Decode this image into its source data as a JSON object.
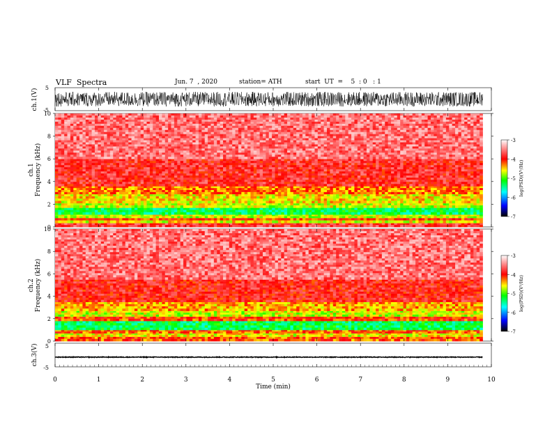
{
  "header": {
    "title": "VLF  Spectra",
    "date": "Jun. 7  , 2020",
    "station": "station= ATH",
    "start_ut": "start  UT  =    5  : 0   : 1"
  },
  "chart_data": [
    {
      "type": "line",
      "title": "",
      "ylabel": "ch.1(V)",
      "ylim": [
        -5,
        5
      ],
      "y_ticks": [
        "5",
        "-5"
      ],
      "description_of_data": "broadband waveform, roughly +/-3 V, continuous over 0-9.8 min",
      "x_extent_min": [
        0,
        9.8
      ]
    },
    {
      "type": "heatmap",
      "ylabel": "Frequency  (kHz)",
      "channel_label": "ch.1",
      "ylim": [
        0,
        10
      ],
      "y_ticks": [
        "0",
        "2",
        "4",
        "6",
        "8",
        "10"
      ],
      "x_extent_min": [
        0,
        9.8
      ],
      "frequency_bands_log_psd": [
        {
          "f_from_khz": 0.0,
          "f_to_khz": 0.35,
          "level": -3.8
        },
        {
          "f_from_khz": 0.35,
          "f_to_khz": 0.6,
          "level": -4.6
        },
        {
          "f_from_khz": 0.6,
          "f_to_khz": 0.8,
          "level": -4.1
        },
        {
          "f_from_khz": 0.8,
          "f_to_khz": 1.1,
          "level": -4.7
        },
        {
          "f_from_khz": 1.1,
          "f_to_khz": 1.7,
          "level": -5.3
        },
        {
          "f_from_khz": 1.7,
          "f_to_khz": 2.1,
          "level": -4.7
        },
        {
          "f_from_khz": 2.1,
          "f_to_khz": 2.9,
          "level": -4.55
        },
        {
          "f_from_khz": 2.9,
          "f_to_khz": 3.6,
          "level": -4.3
        },
        {
          "f_from_khz": 3.6,
          "f_to_khz": 6.0,
          "level": -3.85
        },
        {
          "f_from_khz": 6.0,
          "f_to_khz": 10.0,
          "level": -3.55
        }
      ]
    },
    {
      "type": "heatmap",
      "ylabel": "Frequency  (kHz)",
      "channel_label": "ch.2",
      "ylim": [
        0,
        10
      ],
      "y_ticks": [
        "0",
        "2",
        "4",
        "6",
        "8",
        "10"
      ],
      "x_extent_min": [
        0,
        9.8
      ],
      "frequency_bands_log_psd": [
        {
          "f_from_khz": 0.0,
          "f_to_khz": 0.4,
          "level": -4.2
        },
        {
          "f_from_khz": 0.4,
          "f_to_khz": 0.7,
          "level": -4.6
        },
        {
          "f_from_khz": 0.7,
          "f_to_khz": 1.0,
          "level": -4.2
        },
        {
          "f_from_khz": 1.0,
          "f_to_khz": 1.8,
          "level": -5.3
        },
        {
          "f_from_khz": 1.8,
          "f_to_khz": 2.2,
          "level": -4.1
        },
        {
          "f_from_khz": 2.2,
          "f_to_khz": 2.7,
          "level": -4.7
        },
        {
          "f_from_khz": 2.7,
          "f_to_khz": 3.5,
          "level": -4.4
        },
        {
          "f_from_khz": 3.5,
          "f_to_khz": 5.5,
          "level": -3.9
        },
        {
          "f_from_khz": 5.5,
          "f_to_khz": 10.0,
          "level": -3.55
        }
      ]
    },
    {
      "type": "line",
      "ylabel": "ch.3(V)",
      "ylim": [
        -5,
        5
      ],
      "y_ticks": [
        "5",
        "-5"
      ],
      "description_of_data": "near-constant trace at about -1 V",
      "x_extent_min": [
        0,
        9.8
      ]
    }
  ],
  "x_axis": {
    "label": "Time  (min)",
    "range": [
      0,
      10
    ],
    "ticks": [
      "0",
      "1",
      "2",
      "3",
      "4",
      "5",
      "6",
      "7",
      "8",
      "9",
      "10"
    ]
  },
  "colorbar": {
    "label": "log(PSD)(V²/Hz)",
    "range": [
      -7,
      -3
    ],
    "ticks": [
      "-3",
      "-4",
      "-5",
      "-6",
      "-7"
    ],
    "colors": [
      "#000000",
      "#0000ff",
      "#00ffff",
      "#00ff00",
      "#ffff00",
      "#ff0000",
      "#ffffff"
    ]
  }
}
